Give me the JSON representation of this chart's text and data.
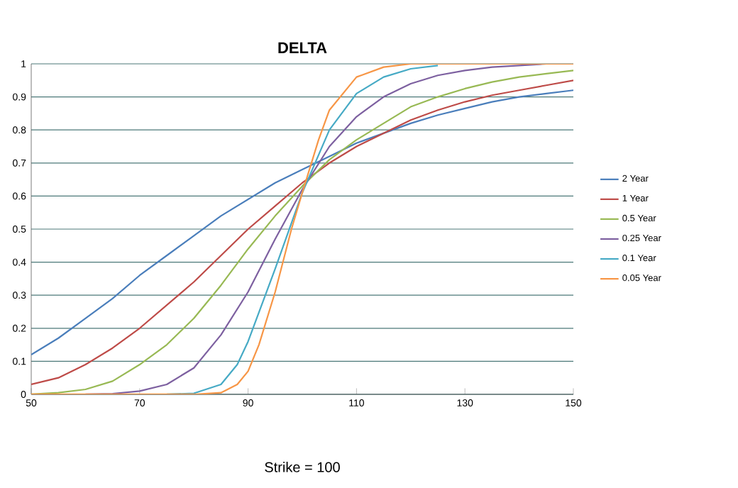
{
  "chart_data": {
    "type": "line",
    "title": "DELTA",
    "annotations": [
      "Strike = 100"
    ],
    "xlim": [
      50,
      150
    ],
    "xticks": [
      50,
      70,
      90,
      110,
      130,
      150
    ],
    "ylim": [
      0,
      1
    ],
    "yticks": [
      0,
      0.1,
      0.2,
      0.3,
      0.4,
      0.5,
      0.6,
      0.7,
      0.8,
      0.9,
      1
    ],
    "grid": "y",
    "legend": "right",
    "marker": "none",
    "line_style": "solid",
    "series": [
      {
        "name": "2 Year",
        "color": "#4a7ebb",
        "x": [
          50,
          55,
          60,
          65,
          70,
          75,
          80,
          85,
          90,
          95,
          100,
          105,
          110,
          115,
          120,
          125,
          130,
          135,
          140,
          145,
          150
        ],
        "values": [
          0.12,
          0.17,
          0.23,
          0.29,
          0.36,
          0.42,
          0.48,
          0.54,
          0.59,
          0.64,
          0.68,
          0.72,
          0.76,
          0.79,
          0.82,
          0.845,
          0.865,
          0.885,
          0.9,
          0.91,
          0.92
        ]
      },
      {
        "name": "1 Year",
        "color": "#be4b48",
        "x": [
          50,
          55,
          60,
          65,
          70,
          75,
          80,
          85,
          90,
          95,
          100,
          105,
          110,
          115,
          120,
          125,
          130,
          135,
          140,
          145,
          150
        ],
        "values": [
          0.03,
          0.05,
          0.09,
          0.14,
          0.2,
          0.27,
          0.34,
          0.42,
          0.5,
          0.57,
          0.64,
          0.7,
          0.75,
          0.79,
          0.83,
          0.86,
          0.885,
          0.905,
          0.92,
          0.935,
          0.95
        ]
      },
      {
        "name": "0.5 Year",
        "color": "#98b954",
        "x": [
          50,
          55,
          60,
          65,
          70,
          75,
          80,
          85,
          90,
          95,
          100,
          105,
          110,
          115,
          120,
          125,
          130,
          135,
          140,
          145,
          150
        ],
        "values": [
          0,
          0.005,
          0.015,
          0.04,
          0.09,
          0.15,
          0.23,
          0.33,
          0.44,
          0.54,
          0.63,
          0.71,
          0.77,
          0.82,
          0.87,
          0.9,
          0.925,
          0.945,
          0.96,
          0.97,
          0.98
        ]
      },
      {
        "name": "0.25 Year",
        "color": "#7d60a0",
        "x": [
          60,
          65,
          70,
          75,
          80,
          85,
          90,
          95,
          100,
          105,
          110,
          115,
          120,
          125,
          130,
          135,
          140,
          145
        ],
        "values": [
          0,
          0.002,
          0.01,
          0.03,
          0.08,
          0.18,
          0.31,
          0.47,
          0.62,
          0.75,
          0.84,
          0.9,
          0.94,
          0.965,
          0.98,
          0.99,
          0.995,
          1
        ]
      },
      {
        "name": "0.1 Year",
        "color": "#46aac5",
        "x": [
          75,
          80,
          85,
          88,
          90,
          95,
          100,
          105,
          110,
          115,
          120,
          125
        ],
        "values": [
          0,
          0.003,
          0.03,
          0.09,
          0.16,
          0.38,
          0.61,
          0.8,
          0.91,
          0.96,
          0.985,
          0.995
        ]
      },
      {
        "name": "0.05 Year",
        "color": "#f79646",
        "x": [
          50,
          60,
          70,
          80,
          85,
          88,
          90,
          92,
          95,
          98,
          100,
          103,
          105,
          110,
          115,
          120,
          130,
          140,
          150
        ],
        "values": [
          0,
          0,
          0,
          0,
          0.005,
          0.03,
          0.07,
          0.15,
          0.31,
          0.5,
          0.61,
          0.77,
          0.86,
          0.96,
          0.99,
          1,
          1,
          1,
          1
        ]
      }
    ]
  }
}
